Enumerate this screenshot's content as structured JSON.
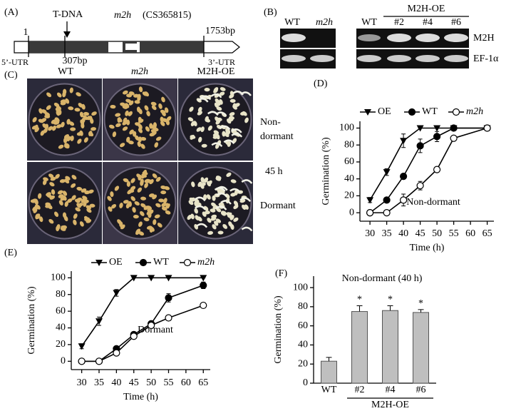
{
  "panels": {
    "a": {
      "label": "(A)",
      "tdna": "T-DNA",
      "gene_name": "m2h",
      "gene_id": "(CS365815)",
      "start": "1",
      "end": "1753bp",
      "insert": "307bp",
      "utr5": "5’-UTR",
      "utr3": "3’-UTR"
    },
    "b": {
      "label": "(B)",
      "lanes_left": [
        "WT",
        "m2h"
      ],
      "lanes_right": [
        "WT",
        "#2",
        "#4",
        "#6"
      ],
      "group_label": "M2H-OE",
      "rows": [
        "M2H",
        "EF-1α"
      ]
    },
    "c": {
      "label": "(C)",
      "columns": [
        "WT",
        "m2h",
        "M2H-OE"
      ],
      "side_top": [
        "Non-",
        "dormant"
      ],
      "side_mid": "45 h",
      "side_bottom": "Dormant"
    }
  },
  "chart_data": [
    {
      "type": "line",
      "label": "(D)",
      "x": [
        30,
        35,
        40,
        45,
        50,
        55,
        65
      ],
      "xlim": [
        27,
        67
      ],
      "xticks": [
        30,
        35,
        40,
        45,
        50,
        55,
        60,
        65
      ],
      "ylim": [
        -10,
        108
      ],
      "yticks": [
        0,
        20,
        40,
        60,
        80,
        100
      ],
      "xlabel": "Time (h)",
      "ylabel": "Germination (%)",
      "annotation": "Non-dormant",
      "series": [
        {
          "name": "OE",
          "color": "#000000",
          "marker": "triangle-down",
          "values": [
            15,
            48,
            85,
            100,
            100,
            100,
            100
          ],
          "errors": [
            3,
            4,
            8,
            0,
            0,
            0,
            0
          ]
        },
        {
          "name": "WT",
          "color": "#000000",
          "marker": "circle",
          "values": [
            0,
            15,
            43,
            79,
            90,
            100,
            100
          ],
          "errors": [
            0,
            3,
            2,
            8,
            6,
            0,
            0
          ]
        },
        {
          "name": "m2h",
          "color": "#000000",
          "marker": "circle-open",
          "values": [
            0,
            0,
            15,
            32,
            51,
            88,
            100
          ],
          "errors": [
            0,
            0,
            7,
            5,
            3,
            0,
            0
          ]
        }
      ]
    },
    {
      "type": "line",
      "label": "(E)",
      "x": [
        30,
        35,
        40,
        45,
        50,
        55,
        65
      ],
      "xlim": [
        27,
        67
      ],
      "xticks": [
        30,
        35,
        40,
        45,
        50,
        55,
        60,
        65
      ],
      "ylim": [
        -10,
        108
      ],
      "yticks": [
        0,
        20,
        40,
        60,
        80,
        100
      ],
      "xlabel": "Time (h)",
      "ylabel": "Germination (%)",
      "annotation": "Dormant",
      "series": [
        {
          "name": "OE",
          "color": "#000000",
          "marker": "triangle-down",
          "values": [
            18,
            48,
            82,
            100,
            100,
            100,
            100
          ],
          "errors": [
            3,
            5,
            4,
            0,
            0,
            0,
            0
          ]
        },
        {
          "name": "WT",
          "color": "#000000",
          "marker": "circle",
          "values": [
            0,
            0,
            15,
            32,
            45,
            76,
            91
          ],
          "errors": [
            0,
            0,
            3,
            3,
            3,
            5,
            4
          ]
        },
        {
          "name": "m2h",
          "color": "#000000",
          "marker": "circle-open",
          "values": [
            0,
            0,
            10,
            30,
            43,
            52,
            67
          ],
          "errors": [
            0,
            0,
            3,
            2,
            2,
            2,
            2
          ]
        }
      ]
    },
    {
      "type": "bar",
      "label": "(F)",
      "title": "Non-dormant (40 h)",
      "categories": [
        "WT",
        "#2",
        "#4",
        "#6"
      ],
      "values": [
        23,
        75,
        76,
        74
      ],
      "errors": [
        4,
        6,
        5,
        3
      ],
      "significance": [
        null,
        "*",
        "*",
        "*"
      ],
      "group_label": "M2H-OE",
      "color": "#bfbfbf",
      "ylim": [
        0,
        112
      ],
      "yticks": [
        0,
        20,
        40,
        60,
        80,
        100
      ],
      "ylabel": "Germination (%)"
    }
  ]
}
